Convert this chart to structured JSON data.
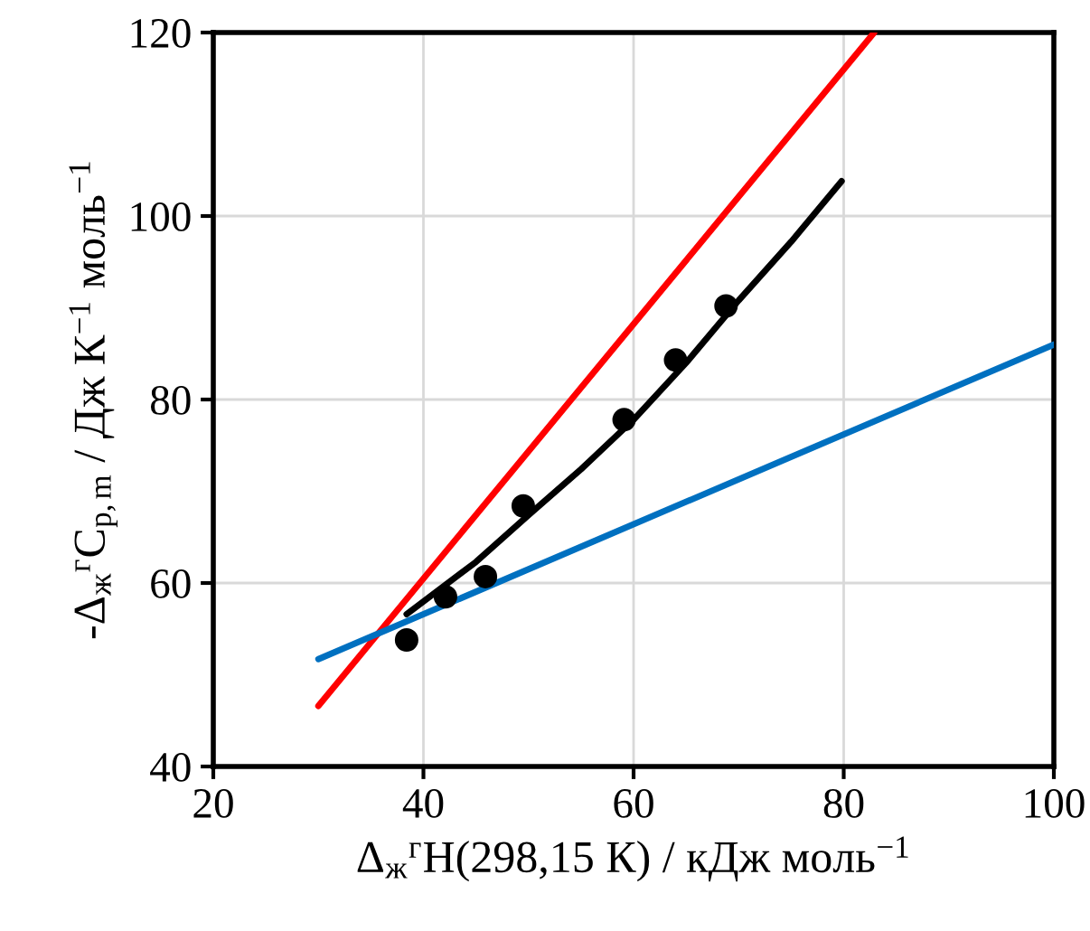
{
  "chart_data": {
    "type": "scatter",
    "xlabel": "Δ$_{ж}$$^{г}$H(298,15 К) / кДж моль$^{−1}$",
    "ylabel": "-Δ$_{ж}$$^{г}$C$_{p,m}$ / Дж К$^{−1}$ моль$^{−1}$",
    "xlim": [
      20,
      100
    ],
    "ylim": [
      40,
      120
    ],
    "xticks": [
      20,
      40,
      60,
      80,
      100
    ],
    "yticks": [
      40,
      60,
      80,
      100,
      120
    ],
    "grid": true,
    "series": [
      {
        "type": "line",
        "color": "#ff0000",
        "x": [
          30,
          82.9
        ],
        "values": [
          46.6,
          120
        ],
        "marker": "none"
      },
      {
        "type": "line",
        "color": "#0070c0",
        "x": [
          30,
          100
        ],
        "values": [
          51.7,
          86
        ],
        "marker": "none"
      },
      {
        "type": "line",
        "color": "#000000",
        "x": [
          38.4,
          45,
          50,
          55,
          60,
          65,
          70,
          75,
          79.8
        ],
        "values": [
          56.6,
          62.3,
          67.4,
          72.4,
          77.8,
          84,
          90.8,
          97.2,
          103.8
        ],
        "marker": "none"
      },
      {
        "color": "#000000",
        "x": [
          38.4,
          42.1,
          45.9,
          49.5,
          59.1,
          64.0,
          68.8
        ],
        "values": [
          53.8,
          58.5,
          60.7,
          68.4,
          77.8,
          84.3,
          90.2
        ],
        "marker": "circle"
      }
    ]
  }
}
